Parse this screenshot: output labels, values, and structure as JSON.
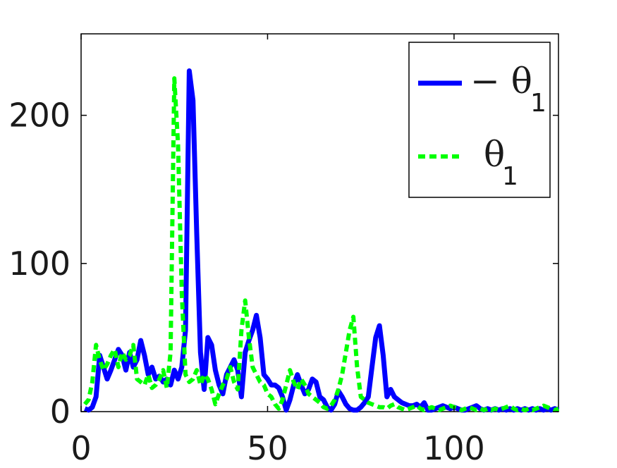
{
  "chart_data": {
    "type": "line",
    "title": "",
    "xlabel": "",
    "ylabel": "",
    "xlim": [
      0,
      128
    ],
    "ylim": [
      0,
      255
    ],
    "xticks": [
      0,
      50,
      100
    ],
    "yticks": [
      0,
      100,
      200
    ],
    "xtick_labels": [
      "0",
      "50",
      "100"
    ],
    "ytick_labels": [
      "0",
      "100",
      "200"
    ],
    "grid": false,
    "legend_position": "top-right",
    "series": [
      {
        "name": "− θ1",
        "legend_text": "− θ",
        "legend_sub": "1",
        "color": "#0000ff",
        "style": "solid",
        "x": [
          1,
          2,
          3,
          4,
          5,
          6,
          7,
          8,
          9,
          10,
          11,
          12,
          13,
          14,
          15,
          16,
          17,
          18,
          19,
          20,
          21,
          22,
          23,
          24,
          25,
          26,
          27,
          28,
          29,
          30,
          31,
          32,
          33,
          34,
          35,
          36,
          37,
          38,
          39,
          40,
          41,
          42,
          43,
          44,
          45,
          46,
          47,
          48,
          49,
          50,
          51,
          52,
          53,
          54,
          55,
          56,
          57,
          58,
          59,
          60,
          61,
          62,
          63,
          64,
          65,
          66,
          67,
          68,
          69,
          70,
          71,
          72,
          73,
          74,
          75,
          76,
          77,
          78,
          79,
          80,
          81,
          82,
          83,
          84,
          85,
          86,
          87,
          88,
          89,
          90,
          91,
          92,
          93,
          94,
          95,
          96,
          97,
          98,
          99,
          100,
          101,
          102,
          103,
          104,
          105,
          106,
          107,
          108,
          109,
          110,
          111,
          112,
          113,
          114,
          115,
          116,
          117,
          118,
          119,
          120,
          121,
          122,
          123,
          124,
          125,
          126,
          127,
          128
        ],
        "values": [
          2,
          1,
          3,
          10,
          38,
          30,
          22,
          28,
          35,
          42,
          38,
          28,
          40,
          30,
          35,
          48,
          38,
          25,
          30,
          22,
          24,
          20,
          22,
          18,
          28,
          22,
          30,
          55,
          230,
          210,
          120,
          40,
          15,
          50,
          45,
          28,
          18,
          12,
          25,
          30,
          35,
          28,
          10,
          40,
          48,
          55,
          65,
          50,
          25,
          22,
          18,
          18,
          16,
          10,
          1,
          8,
          18,
          25,
          18,
          12,
          15,
          22,
          20,
          10,
          8,
          3,
          1,
          5,
          14,
          10,
          5,
          2,
          1,
          1,
          3,
          6,
          10,
          30,
          50,
          58,
          38,
          10,
          15,
          10,
          8,
          6,
          5,
          4,
          4,
          5,
          3,
          6,
          1,
          1,
          2,
          3,
          4,
          3,
          2,
          3,
          2,
          1,
          1,
          2,
          3,
          4,
          2,
          1,
          2,
          1,
          2,
          1,
          2,
          1,
          2,
          1,
          2,
          1,
          2,
          1,
          2,
          1,
          2,
          1,
          2,
          1,
          2,
          1
        ]
      },
      {
        "name": "θ1",
        "legend_text": "θ",
        "legend_sub": "1",
        "color": "#00ff00",
        "style": "dashed",
        "x": [
          1,
          2,
          3,
          4,
          5,
          6,
          7,
          8,
          9,
          10,
          11,
          12,
          13,
          14,
          15,
          16,
          17,
          18,
          19,
          20,
          21,
          22,
          23,
          24,
          25,
          26,
          27,
          28,
          29,
          30,
          31,
          32,
          33,
          34,
          35,
          36,
          37,
          38,
          39,
          40,
          41,
          42,
          43,
          44,
          45,
          46,
          47,
          48,
          49,
          50,
          51,
          52,
          53,
          54,
          55,
          56,
          57,
          58,
          59,
          60,
          61,
          62,
          63,
          64,
          65,
          66,
          67,
          68,
          69,
          70,
          71,
          72,
          73,
          74,
          75,
          76,
          77,
          78,
          79,
          80,
          81,
          82,
          83,
          84,
          85,
          86,
          87,
          88,
          89,
          90,
          91,
          92,
          93,
          94,
          95,
          96,
          97,
          98,
          99,
          100,
          101,
          102,
          103,
          104,
          105,
          106,
          107,
          108,
          109,
          110,
          111,
          112,
          113,
          114,
          115,
          116,
          117,
          118,
          119,
          120,
          121,
          122,
          123,
          124,
          125,
          126,
          127,
          128
        ],
        "values": [
          5,
          8,
          20,
          45,
          35,
          28,
          32,
          38,
          42,
          30,
          40,
          35,
          38,
          45,
          22,
          20,
          18,
          25,
          16,
          18,
          22,
          28,
          16,
          40,
          225,
          180,
          80,
          25,
          20,
          22,
          28,
          18,
          25,
          22,
          15,
          5,
          12,
          18,
          22,
          30,
          20,
          15,
          55,
          75,
          50,
          30,
          25,
          20,
          18,
          12,
          10,
          5,
          2,
          8,
          18,
          28,
          20,
          15,
          22,
          18,
          12,
          10,
          8,
          6,
          3,
          2,
          4,
          8,
          15,
          25,
          40,
          55,
          64,
          30,
          10,
          8,
          6,
          5,
          4,
          3,
          3,
          2,
          4,
          5,
          3,
          2,
          1,
          2,
          3,
          4,
          2,
          1,
          2,
          3,
          2,
          1,
          2,
          3,
          4,
          3,
          2,
          1,
          2,
          3,
          2,
          1,
          2,
          1,
          2,
          1,
          2,
          1,
          2,
          3,
          4,
          2,
          1,
          2,
          1,
          2,
          1,
          2,
          3,
          4,
          3,
          2,
          1,
          2
        ]
      }
    ]
  }
}
